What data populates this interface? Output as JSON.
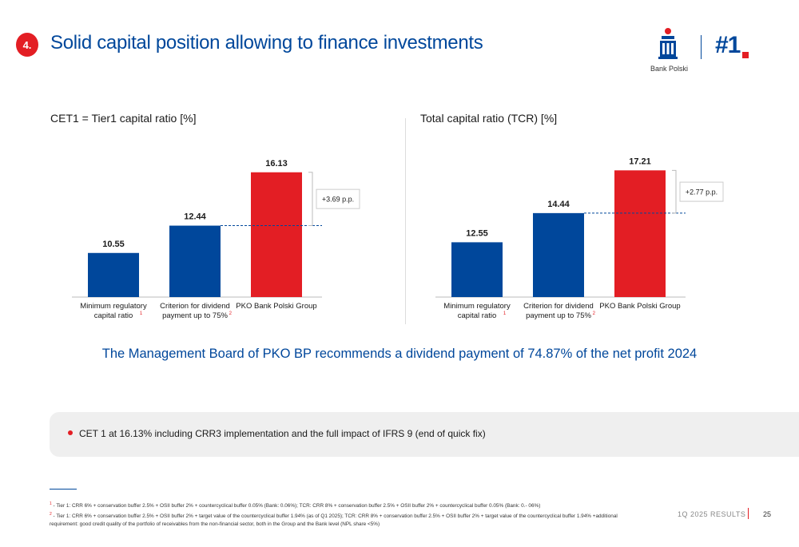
{
  "header": {
    "section_number": "4.",
    "title": "Solid capital position allowing to finance investments",
    "logo_caption": "Bank Polski",
    "rank": "#1"
  },
  "colors": {
    "blue": "#00479b",
    "red": "#e31e24"
  },
  "chart_data": [
    {
      "type": "bar",
      "title": "CET1 = Tier1 capital ratio [%]",
      "categories": [
        "Minimum regulatory capital ratio",
        "Criterion for dividend payment up to 75%",
        "PKO Bank Polski Group"
      ],
      "category_lines": [
        [
          "Minimum regulatory",
          "capital ratio"
        ],
        [
          "Criterion for dividend",
          "payment up to 75%"
        ],
        [
          "PKO Bank Polski Group"
        ]
      ],
      "footnote_marks": [
        "1",
        "2",
        ""
      ],
      "values": [
        10.55,
        12.44,
        16.13
      ],
      "value_labels": [
        "10.55",
        "12.44",
        "16.13"
      ],
      "bar_colors": [
        "#00479b",
        "#00479b",
        "#e31e24"
      ],
      "annotation": "+3.69 p.p.",
      "ylim": [
        7.5,
        17
      ]
    },
    {
      "type": "bar",
      "title": "Total capital ratio (TCR) [%]",
      "categories": [
        "Minimum regulatory capital ratio",
        "Criterion for dividend payment up to 75%",
        "PKO Bank Polski Group"
      ],
      "category_lines": [
        [
          "Minimum regulatory",
          "capital ratio"
        ],
        [
          "Criterion for dividend",
          "payment up to 75%"
        ],
        [
          "PKO Bank Polski Group"
        ]
      ],
      "footnote_marks": [
        "1",
        "2",
        ""
      ],
      "values": [
        12.55,
        14.44,
        17.21
      ],
      "value_labels": [
        "12.55",
        "14.44",
        "17.21"
      ],
      "bar_colors": [
        "#00479b",
        "#00479b",
        "#e31e24"
      ],
      "annotation": "+2.77 p.p.",
      "ylim": [
        9.0,
        17.9
      ]
    }
  ],
  "recommendation": "The Management Board of PKO BP recommends a dividend payment of 74.87% of the net profit 2024",
  "bullet": "CET 1 at 16.13% including CRR3 implementation and the full impact of IFRS 9 (end of quick fix)",
  "footnotes": {
    "fn1_mark": "1",
    "fn1": " - Tier 1: CRR 6% + conservation buffer 2.5% + OSII buffer 2% + countercyclical buffer 0.05% (Bank: 0.06%); TCR: CRR 8% + conservation buffer 2.5% + OSII buffer 2% + countercyclical buffer 0.05% (Bank: 0.- 06%)",
    "fn2_mark": "2",
    "fn2": " - Tier 1: CRR 6% + conservation buffer 2.5% + OSII buffer 2% + target value of the countercyclical buffer 1.94% (as of Q1 2025); TCR: CRR 8% + conservation buffer 2.5% + OSII buffer 2% + target value of the countercyclical buffer 1.94% +additional requirement: good credit quality of the portfolio of receivables from the non-financial sector, both in the Group and the Bank level (NPL share <5%)"
  },
  "footer": {
    "label": "1Q 2025 RESULTS",
    "page": "25"
  }
}
